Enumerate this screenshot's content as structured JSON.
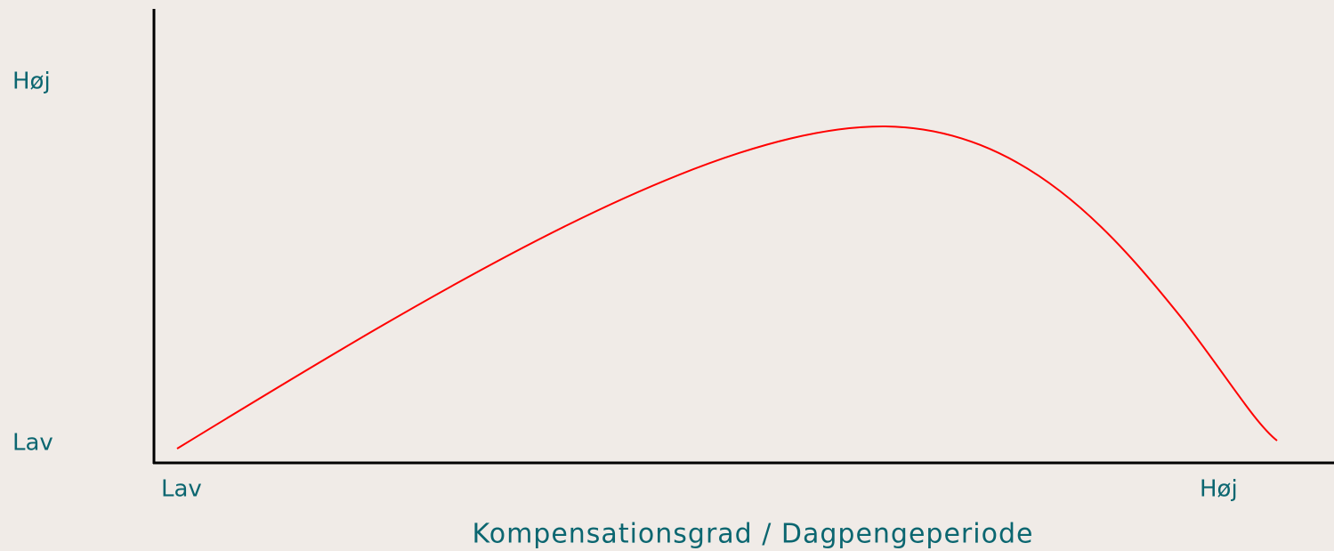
{
  "y_axis": {
    "top_label": "Høj",
    "bottom_label": "Lav"
  },
  "x_axis": {
    "left_label": "Lav",
    "right_label": "Høj",
    "title": "Kompensationsgrad / Dagpengeperiode"
  }
}
